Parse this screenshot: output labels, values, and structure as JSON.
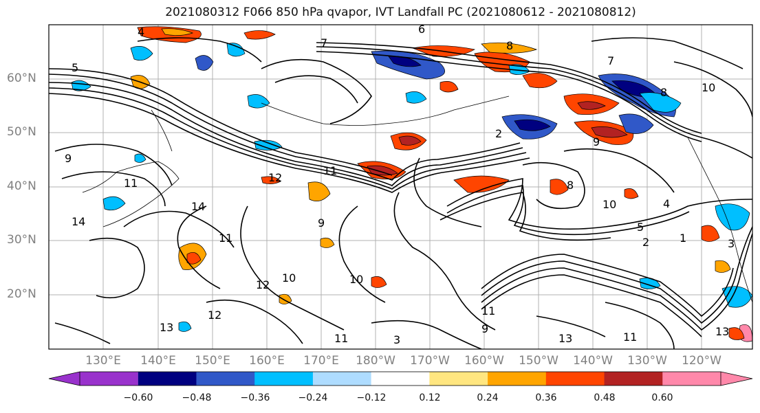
{
  "title": "2021080312 F066 850 hPa qvapor, IVT Landfall PC (2021080612 - 2021080812)",
  "map": {
    "lat_labels": [
      "60°N",
      "50°N",
      "40°N",
      "30°N",
      "20°N"
    ],
    "lon_labels": [
      "130°E",
      "140°E",
      "150°E",
      "160°E",
      "170°E",
      "180°W",
      "170°W",
      "160°W",
      "150°W",
      "140°W",
      "130°W",
      "120°W"
    ],
    "contour_labels": [
      "4",
      "5",
      "6",
      "7",
      "8",
      "9",
      "10",
      "11",
      "12",
      "13",
      "14",
      "2",
      "3",
      "1"
    ]
  },
  "colorbar": {
    "colors": [
      "#9932cc",
      "#000080",
      "#3058c8",
      "#00bfff",
      "#aedcff",
      "#ffffff",
      "#ffe680",
      "#ffa500",
      "#ff4500",
      "#b22222",
      "#ff88aa"
    ],
    "tick_labels": [
      "−0.60",
      "−0.48",
      "−0.36",
      "−0.24",
      "−0.12",
      "0.12",
      "0.24",
      "0.36",
      "0.48",
      "0.60"
    ]
  }
}
